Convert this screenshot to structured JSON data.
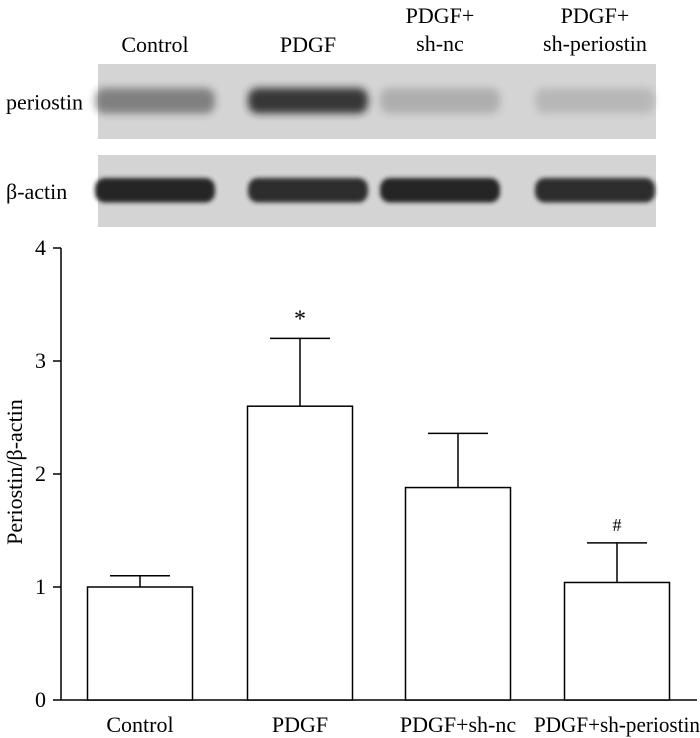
{
  "blot": {
    "lane_labels": [
      [
        "Control"
      ],
      [
        "PDGF"
      ],
      [
        "PDGF+",
        "sh-nc"
      ],
      [
        "PDGF+",
        "sh-periostin"
      ]
    ],
    "rows": [
      {
        "label": "periostin",
        "band_intensity": [
          0.45,
          0.85,
          0.2,
          0.15
        ]
      },
      {
        "label": "β-actin",
        "band_intensity": [
          0.95,
          0.9,
          0.95,
          0.9
        ]
      }
    ],
    "colors": {
      "membrane": "#d4d4d4",
      "band": "#1a1a1a"
    }
  },
  "chart_data": {
    "type": "bar",
    "categories": [
      "Control",
      "PDGF",
      "PDGF+sh-nc",
      "PDGF+sh-periostin"
    ],
    "values": [
      1.0,
      2.6,
      1.88,
      1.04
    ],
    "errors": [
      0.1,
      0.6,
      0.48,
      0.35
    ],
    "annotations": [
      "",
      "*",
      "",
      "#"
    ],
    "ylabel": "Periostin/β-actin",
    "xlabel": "",
    "ylim": [
      0,
      4
    ],
    "yticks": [
      0,
      1,
      2,
      3,
      4
    ],
    "bar_fill": "#ffffff",
    "bar_stroke": "#000000"
  }
}
